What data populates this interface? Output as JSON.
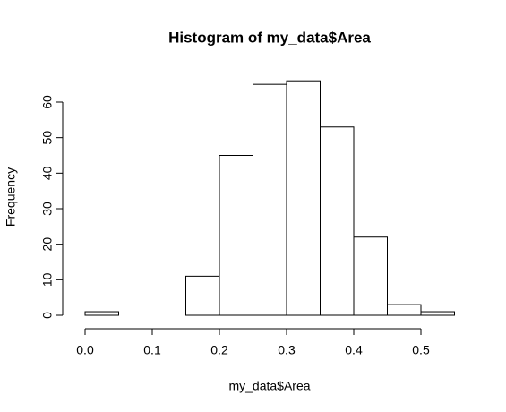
{
  "chart_data": {
    "type": "histogram",
    "title": "Histogram of my_data$Area",
    "x_label": "my_data$Area",
    "y_label": "Frequency",
    "bins": [
      0,
      0.05,
      0.1,
      0.15,
      0.2,
      0.25,
      0.3,
      0.35,
      0.4,
      0.45,
      0.5,
      0.55
    ],
    "values": [
      1,
      0,
      0,
      11,
      45,
      65,
      66,
      53,
      22,
      3,
      1
    ],
    "color": "#ffffff",
    "xlim": [
      0,
      0.55
    ],
    "xticks": [
      {
        "value": 0,
        "label": "0.0"
      },
      0.1,
      0.2,
      0.3,
      0.4,
      0.5
    ],
    "ylim": [
      0,
      66
    ],
    "yticks": [
      0,
      10,
      20,
      30,
      40,
      50,
      60
    ]
  }
}
